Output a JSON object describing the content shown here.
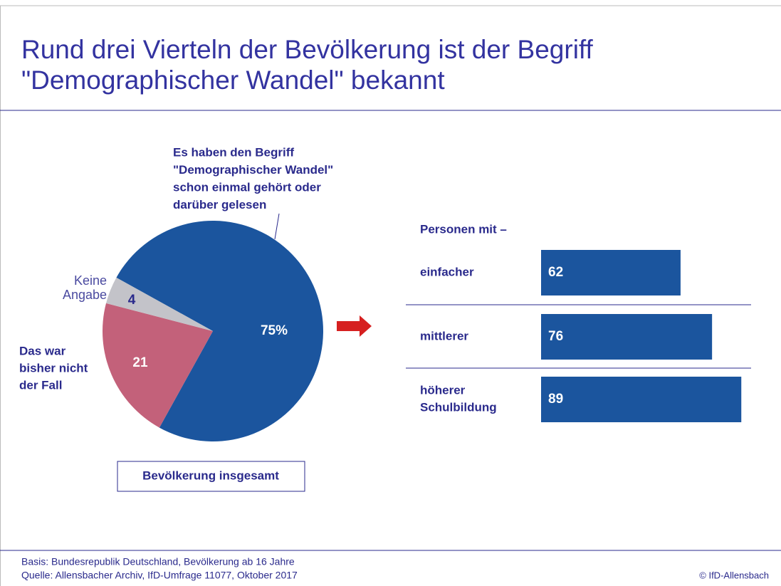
{
  "header": {
    "title": [
      "Rund drei Vierteln der Bevölkerung ist der Begriff",
      "\"Demographischer Wandel\" bekannt"
    ]
  },
  "chart_data": [
    {
      "type": "pie",
      "caption": "Bevölkerung insgesamt",
      "categories": [
        [
          "Es haben den Begriff",
          "\"Demographischer Wandel\"",
          "schon einmal gehört oder",
          "darüber gelesen"
        ],
        [
          "Das war",
          "bisher nicht",
          "der Fall"
        ],
        [
          "Keine",
          "Angabe"
        ]
      ],
      "values": [
        75,
        21,
        4
      ],
      "value_labels": [
        "75%",
        "21",
        "4"
      ],
      "colors": [
        "#1b559e",
        "#c3617a",
        "#c3c3c9"
      ]
    },
    {
      "type": "hbar",
      "title": "Personen mit –",
      "categories": [
        [
          "einfacher"
        ],
        [
          "mittlerer"
        ],
        [
          "höherer",
          "Schulbildung"
        ]
      ],
      "values": [
        62,
        76,
        89
      ],
      "color": "#1b559e",
      "xlim": [
        0,
        100
      ]
    }
  ],
  "footer": {
    "notes": [
      "Basis: Bundesrepublik Deutschland, Bevölkerung ab 16 Jahre",
      "Quelle: Allensbacher Archiv, IfD-Umfrage 11077, Oktober 2017"
    ],
    "copyright": "© IfD-Allensbach"
  }
}
